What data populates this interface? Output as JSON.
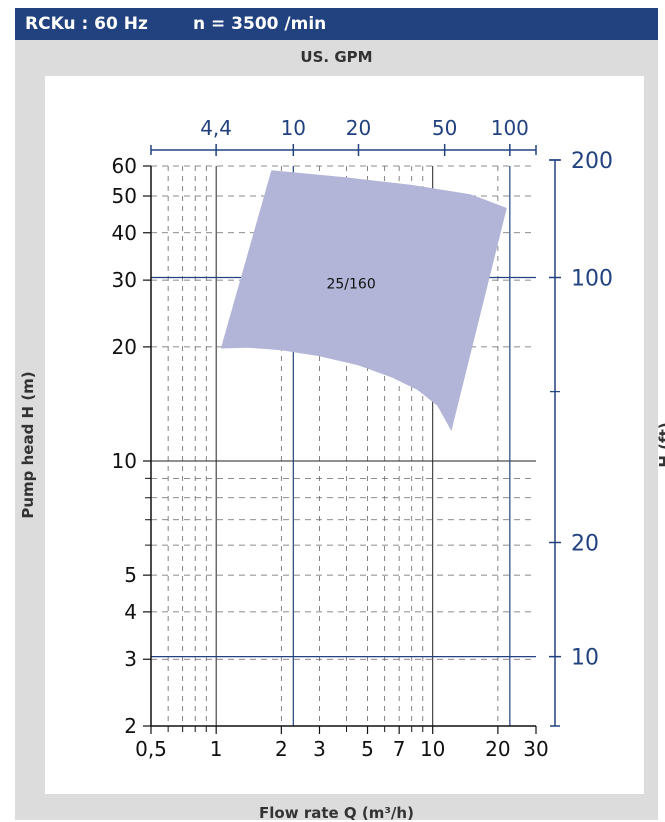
{
  "header": {
    "title": "RCKu : 60 Hz",
    "speed": "n = 3500 /min"
  },
  "colors": {
    "header_bg": "#22427f",
    "frame_bg": "#dcdcdc",
    "secondary_axis": "#22427f",
    "curve_fill": "#b3b5d8"
  },
  "chart_data": {
    "type": "area",
    "scale": "log-log",
    "xlabel": "Flow rate Q (m³/h)",
    "ylabel": "Pump head H (m)",
    "x2label": "US. GPM",
    "y2label": "H (ft)",
    "xlim": [
      0.5,
      30
    ],
    "ylim": [
      2,
      60
    ],
    "x_ticks": [
      0.5,
      1,
      2,
      3,
      5,
      7,
      10,
      20,
      30
    ],
    "x_tick_labels": [
      "0,5",
      "1",
      "2",
      "3",
      "5",
      "7",
      "10",
      "20",
      "30"
    ],
    "y_ticks": [
      2,
      3,
      4,
      5,
      10,
      20,
      30,
      40,
      50,
      60
    ],
    "y_tick_labels": [
      "2",
      "3",
      "4",
      "5",
      "10",
      "20",
      "30",
      "40",
      "50",
      "60"
    ],
    "x2_ticks": [
      4.4,
      10,
      20,
      50,
      100
    ],
    "x2_tick_labels": [
      "4,4",
      "10",
      "20",
      "50",
      "100"
    ],
    "y2_ticks": [
      10,
      20,
      100,
      200
    ],
    "y2_tick_labels": [
      "10",
      "20",
      "100",
      "200"
    ],
    "grid": true,
    "regions": [
      {
        "name": "25/160",
        "boundary": [
          [
            1.05,
            19.8
          ],
          [
            1.4,
            19.9
          ],
          [
            2.0,
            19.6
          ],
          [
            3.0,
            18.9
          ],
          [
            4.5,
            17.9
          ],
          [
            6.5,
            16.6
          ],
          [
            8.5,
            15.4
          ],
          [
            10.5,
            14.0
          ],
          [
            12.2,
            12.0
          ],
          [
            22.0,
            46.5
          ],
          [
            15.0,
            50.5
          ],
          [
            8.0,
            53.5
          ],
          [
            4.0,
            56.0
          ],
          [
            1.8,
            58.5
          ]
        ]
      }
    ]
  }
}
